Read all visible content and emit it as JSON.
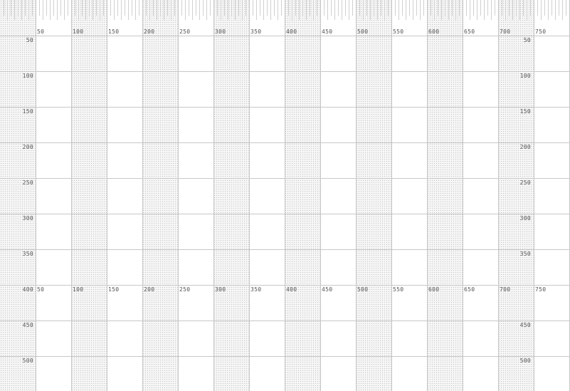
{
  "ruler": {
    "x_labels": [
      "50",
      "100",
      "150",
      "200",
      "250",
      "300",
      "350",
      "400",
      "450",
      "500",
      "550",
      "600",
      "650",
      "700",
      "750"
    ],
    "y_labels": [
      "50",
      "100",
      "150",
      "200",
      "250",
      "300",
      "350",
      "400",
      "450",
      "500"
    ],
    "repeat_x_labels": [
      "50",
      "100",
      "150",
      "200",
      "250",
      "300",
      "350",
      "400",
      "450",
      "500",
      "550",
      "600",
      "650",
      "700",
      "750"
    ]
  }
}
